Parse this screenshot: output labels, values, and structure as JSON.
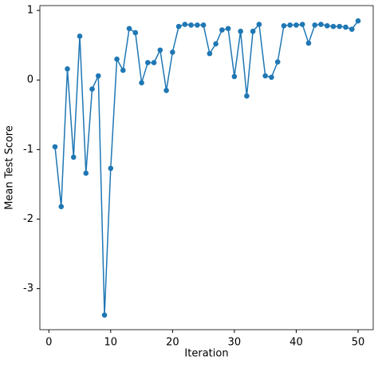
{
  "chart_data": {
    "type": "line",
    "xlabel": "Iteration",
    "ylabel": "Mean Test Score",
    "x": [
      1,
      2,
      3,
      4,
      5,
      6,
      7,
      8,
      9,
      10,
      11,
      12,
      13,
      14,
      15,
      16,
      17,
      18,
      19,
      20,
      21,
      22,
      23,
      24,
      25,
      26,
      27,
      28,
      29,
      30,
      31,
      32,
      33,
      34,
      35,
      36,
      37,
      38,
      39,
      40,
      41,
      42,
      43,
      44,
      45,
      46,
      47,
      48,
      49,
      50
    ],
    "series": [
      {
        "color": "#1f77b4",
        "values": [
          -0.96,
          -1.82,
          0.16,
          -1.11,
          0.63,
          -1.34,
          -0.13,
          0.06,
          -3.38,
          -1.27,
          0.3,
          0.14,
          0.74,
          0.68,
          -0.04,
          0.25,
          0.25,
          0.43,
          -0.15,
          0.4,
          0.77,
          0.8,
          0.79,
          0.79,
          0.79,
          0.38,
          0.52,
          0.72,
          0.74,
          0.05,
          0.7,
          -0.23,
          0.7,
          0.8,
          0.06,
          0.04,
          0.26,
          0.78,
          0.79,
          0.79,
          0.8,
          0.53,
          0.79,
          0.8,
          0.78,
          0.77,
          0.77,
          0.76,
          0.73,
          0.85
        ]
      }
    ],
    "xlim": [
      -1.45,
      52.45
    ],
    "xticks": [
      0,
      10,
      20,
      30,
      40,
      50
    ],
    "ylim": [
      -3.59,
      1.07
    ],
    "yticks": [
      -3,
      -2,
      -1,
      0,
      1
    ],
    "markers": true
  }
}
